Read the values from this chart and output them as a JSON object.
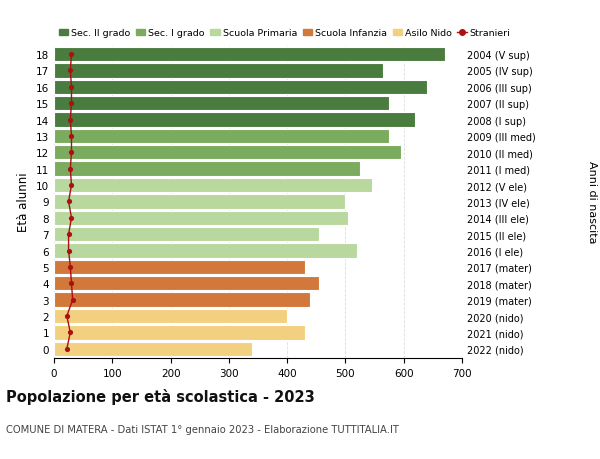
{
  "ages": [
    0,
    1,
    2,
    3,
    4,
    5,
    6,
    7,
    8,
    9,
    10,
    11,
    12,
    13,
    14,
    15,
    16,
    17,
    18
  ],
  "years": [
    "2022 (nido)",
    "2021 (nido)",
    "2020 (nido)",
    "2019 (mater)",
    "2018 (mater)",
    "2017 (mater)",
    "2016 (I ele)",
    "2015 (II ele)",
    "2014 (III ele)",
    "2013 (IV ele)",
    "2012 (V ele)",
    "2011 (I med)",
    "2010 (II med)",
    "2009 (III med)",
    "2008 (I sup)",
    "2007 (II sup)",
    "2006 (III sup)",
    "2005 (IV sup)",
    "2004 (V sup)"
  ],
  "values": [
    340,
    430,
    400,
    440,
    455,
    430,
    520,
    455,
    505,
    500,
    545,
    525,
    595,
    575,
    620,
    575,
    640,
    565,
    670
  ],
  "stranieri": [
    22,
    28,
    22,
    32,
    30,
    28,
    25,
    25,
    30,
    25,
    30,
    28,
    30,
    30,
    28,
    30,
    30,
    28,
    30
  ],
  "colors": {
    "Sec. II grado": "#4a7c3f",
    "Sec. I grado": "#7aab5e",
    "Scuola Primaria": "#b8d89e",
    "Scuola Infanzia": "#d2783a",
    "Asilo Nido": "#f2d080"
  },
  "bar_colors": [
    "#f2d080",
    "#f2d080",
    "#f2d080",
    "#d2783a",
    "#d2783a",
    "#d2783a",
    "#b8d89e",
    "#b8d89e",
    "#b8d89e",
    "#b8d89e",
    "#b8d89e",
    "#7aab5e",
    "#7aab5e",
    "#7aab5e",
    "#4a7c3f",
    "#4a7c3f",
    "#4a7c3f",
    "#4a7c3f",
    "#4a7c3f"
  ],
  "stranieri_color": "#aa1111",
  "title": "Popolazione per età scolastica - 2023",
  "subtitle": "COMUNE DI MATERA - Dati ISTAT 1° gennaio 2023 - Elaborazione TUTTITALIA.IT",
  "ylabel": "Età alunni",
  "right_label": "Anni di nascita",
  "xlim": [
    0,
    700
  ],
  "xticks": [
    0,
    100,
    200,
    300,
    400,
    500,
    600,
    700
  ],
  "bg_color": "#ffffff",
  "grid_color": "#dddddd"
}
